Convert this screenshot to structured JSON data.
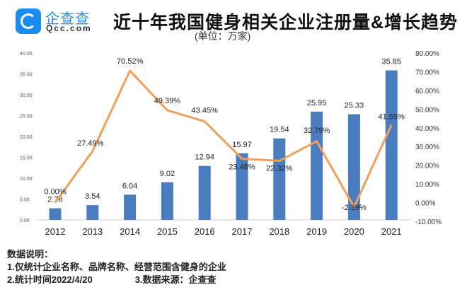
{
  "logo": {
    "name_cn": "企查查",
    "name_en": "Qcc.com",
    "brand_color": "#1a8cf0"
  },
  "header": {
    "title": "近十年我国健身相关企业注册量&增长趋势",
    "unit": "(单位：万家)"
  },
  "notes": {
    "heading": "数据说明：",
    "line1": "1.仅统计企业名称、品牌名称、经营范围含健身的企业",
    "line2": "2.统计时间2022/4/20",
    "line3": "3.数据来源：企查查"
  },
  "chart_data": {
    "type": "bar+line",
    "categories": [
      "2012",
      "2013",
      "2014",
      "2015",
      "2016",
      "2017",
      "2018",
      "2019",
      "2020",
      "2021"
    ],
    "series": [
      {
        "type": "bar",
        "axis": "left",
        "color": "#4a7dc0",
        "values": [
          2.78,
          3.54,
          6.04,
          9.02,
          12.94,
          15.97,
          19.54,
          25.95,
          25.33,
          35.85
        ],
        "labels": [
          "2.78",
          "3.54",
          "6.04",
          "9.02",
          "12.94",
          "15.97",
          "19.54",
          "25.95",
          "25.33",
          "35.85"
        ]
      },
      {
        "type": "line",
        "axis": "right",
        "color": "#f0a05a",
        "values": [
          0.0,
          27.49,
          70.52,
          49.39,
          43.45,
          23.48,
          22.32,
          32.79,
          -2.39,
          41.55
        ],
        "labels": [
          "0.00%",
          "27.49%",
          "70.52%",
          "49.39%",
          "43.45%",
          "23.48%",
          "22.32%",
          "32.79%",
          "-2.39%",
          "41.55%"
        ]
      }
    ],
    "left_axis": {
      "ylim": [
        0,
        40
      ],
      "ticks": [
        "0.00",
        "5.00",
        "10.00",
        "15.00",
        "20.00",
        "25.00",
        "30.00",
        "35.00",
        "40.00"
      ]
    },
    "right_axis": {
      "ylim": [
        -10,
        80
      ],
      "ticks": [
        "-10.00%",
        "0.00%",
        "10.00%",
        "20.00%",
        "30.00%",
        "40.00%",
        "50.00%",
        "60.00%",
        "70.00%",
        "80.00%"
      ]
    },
    "grid": false,
    "legend": "none"
  }
}
